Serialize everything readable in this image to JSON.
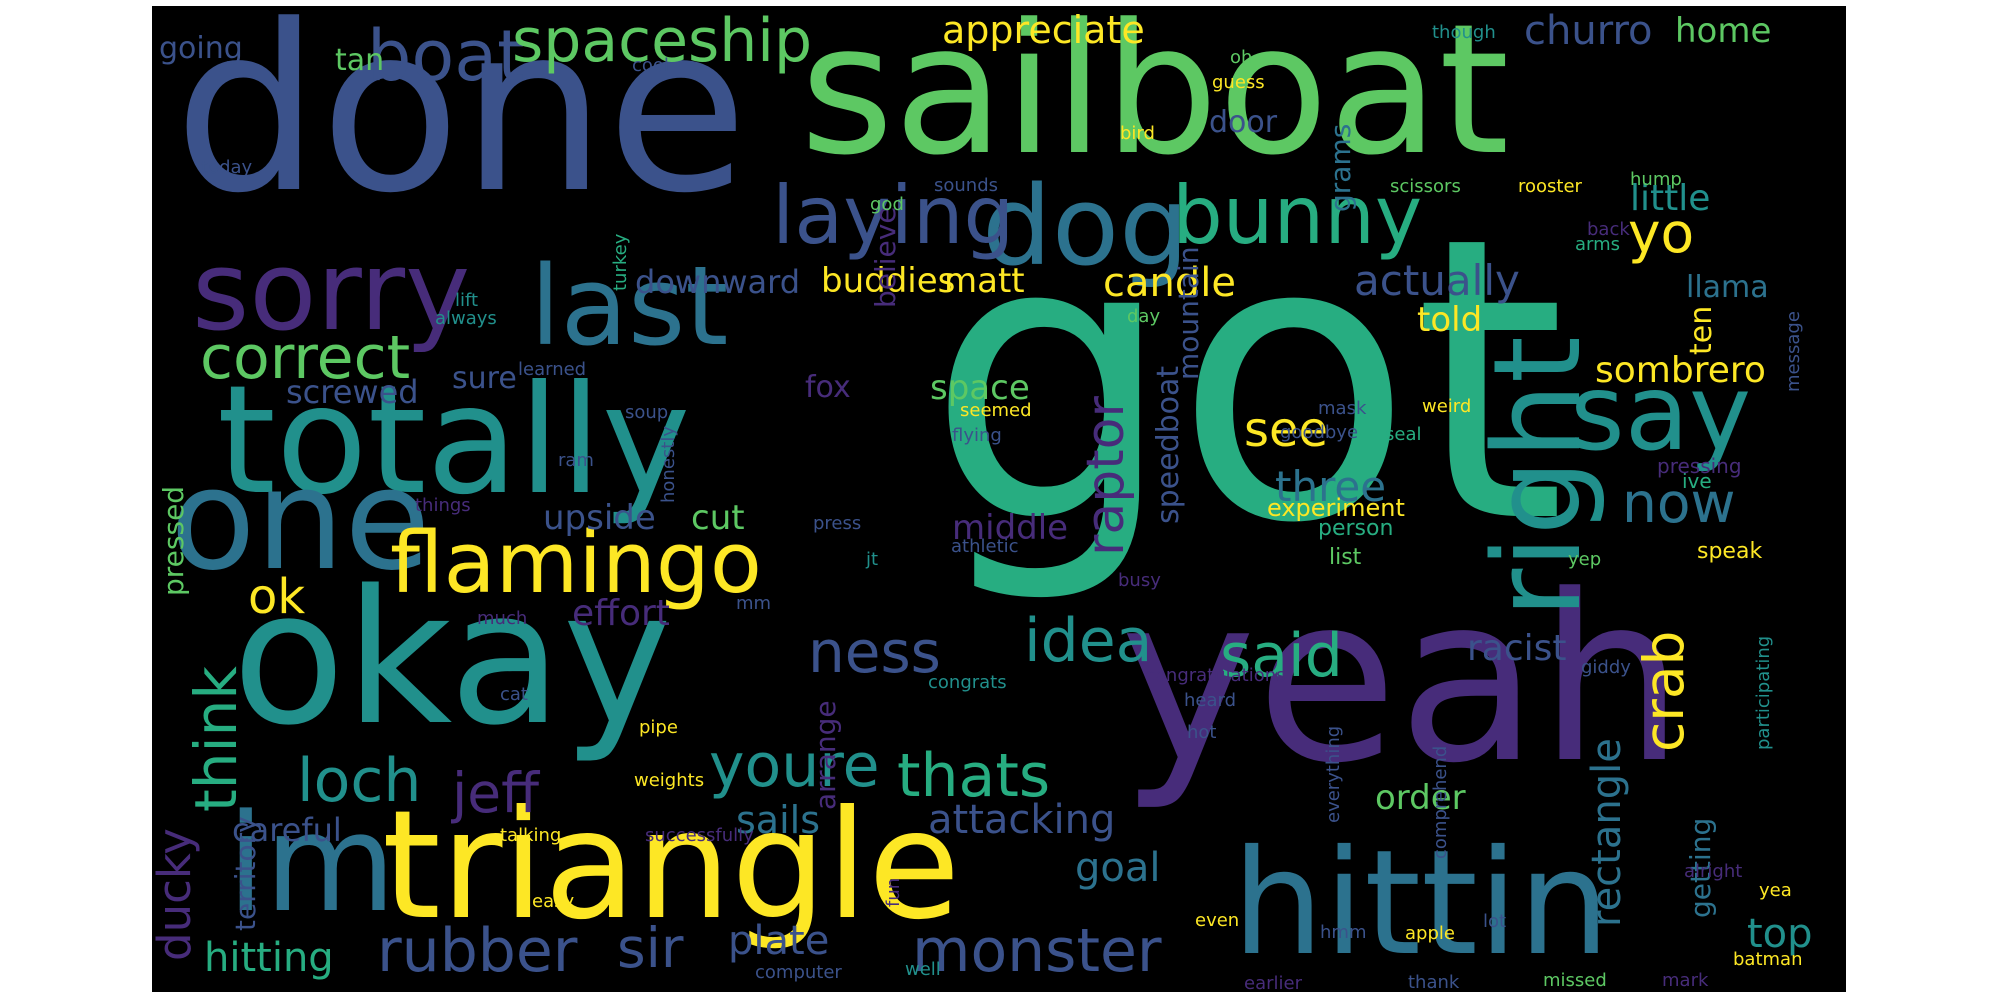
{
  "palette": {
    "purple": "#472C7A",
    "indigo": "#3B528B",
    "blue": "#2C728E",
    "teal": "#21908C",
    "green": "#27AD81",
    "lime": "#5DC863",
    "yellow": "#FDE725",
    "deep": "#440154"
  },
  "words": [
    {
      "text": "got",
      "color": "green",
      "weight": 100,
      "vertical": false
    },
    {
      "text": "done",
      "color": "indigo",
      "weight": 58,
      "vertical": false
    },
    {
      "text": "sailboat",
      "color": "lime",
      "weight": 50,
      "vertical": false
    },
    {
      "text": "yeah",
      "color": "purple",
      "weight": 56,
      "vertical": false
    },
    {
      "text": "okay",
      "color": "teal",
      "weight": 52,
      "vertical": false
    },
    {
      "text": "totally",
      "color": "teal",
      "weight": 40,
      "vertical": false
    },
    {
      "text": "triangle",
      "color": "yellow",
      "weight": 40,
      "vertical": false
    },
    {
      "text": "hittin",
      "color": "blue",
      "weight": 38,
      "vertical": false
    },
    {
      "text": "one",
      "color": "blue",
      "weight": 36,
      "vertical": false
    },
    {
      "text": "im",
      "color": "blue",
      "weight": 34,
      "vertical": false
    },
    {
      "text": "right",
      "color": "teal",
      "weight": 30,
      "vertical": true
    },
    {
      "text": "sorry",
      "color": "purple",
      "weight": 28,
      "vertical": false
    },
    {
      "text": "last",
      "color": "blue",
      "weight": 28,
      "vertical": false
    },
    {
      "text": "dog",
      "color": "blue",
      "weight": 28,
      "vertical": false
    },
    {
      "text": "say",
      "color": "teal",
      "weight": 26,
      "vertical": false
    },
    {
      "text": "flamingo",
      "color": "yellow",
      "weight": 22,
      "vertical": false
    },
    {
      "text": "laying",
      "color": "indigo",
      "weight": 20,
      "vertical": false
    },
    {
      "text": "bunny",
      "color": "green",
      "weight": 20,
      "vertical": false
    },
    {
      "text": "boat",
      "color": "indigo",
      "weight": 18,
      "vertical": false
    },
    {
      "text": "spaceship",
      "color": "lime",
      "weight": 16,
      "vertical": false
    },
    {
      "text": "correct",
      "color": "lime",
      "weight": 16,
      "vertical": false
    },
    {
      "text": "loch",
      "color": "teal",
      "weight": 16,
      "vertical": false
    },
    {
      "text": "rubber",
      "color": "indigo",
      "weight": 16,
      "vertical": false
    },
    {
      "text": "monster",
      "color": "indigo",
      "weight": 16,
      "vertical": false
    },
    {
      "text": "youre",
      "color": "teal",
      "weight": 16,
      "vertical": false
    },
    {
      "text": "thats",
      "color": "green",
      "weight": 16,
      "vertical": false
    },
    {
      "text": "idea",
      "color": "teal",
      "weight": 16,
      "vertical": false
    },
    {
      "text": "said",
      "color": "green",
      "weight": 16,
      "vertical": false
    },
    {
      "text": "think",
      "color": "green",
      "weight": 16,
      "vertical": true
    },
    {
      "text": "ness",
      "color": "indigo",
      "weight": 16,
      "vertical": false
    },
    {
      "text": "jeff",
      "color": "purple",
      "weight": 14,
      "vertical": false
    },
    {
      "text": "sir",
      "color": "indigo",
      "weight": 14,
      "vertical": false
    },
    {
      "text": "now",
      "color": "blue",
      "weight": 14,
      "vertical": false
    },
    {
      "text": "yo",
      "color": "yellow",
      "weight": 14,
      "vertical": false
    },
    {
      "text": "crab",
      "color": "yellow",
      "weight": 14,
      "vertical": true
    },
    {
      "text": "raptor",
      "color": "purple",
      "weight": 14,
      "vertical": true
    },
    {
      "text": "ok",
      "color": "yellow",
      "weight": 12,
      "vertical": false
    },
    {
      "text": "see",
      "color": "yellow",
      "weight": 12,
      "vertical": false
    },
    {
      "text": "ducky",
      "color": "purple",
      "weight": 12,
      "vertical": true
    },
    {
      "text": "rectangle",
      "color": "blue",
      "weight": 10,
      "vertical": true
    },
    {
      "text": "actually",
      "color": "indigo",
      "weight": 10,
      "vertical": false
    },
    {
      "text": "three",
      "color": "blue",
      "weight": 10,
      "vertical": false
    },
    {
      "text": "candle",
      "color": "yellow",
      "weight": 10,
      "vertical": false
    },
    {
      "text": "buddies",
      "color": "yellow",
      "weight": 10,
      "vertical": false
    },
    {
      "text": "matt",
      "color": "yellow",
      "weight": 10,
      "vertical": false
    },
    {
      "text": "hitting",
      "color": "green",
      "weight": 10,
      "vertical": false
    },
    {
      "text": "plate",
      "color": "indigo",
      "weight": 10,
      "vertical": false
    },
    {
      "text": "attacking",
      "color": "indigo",
      "weight": 10,
      "vertical": false
    },
    {
      "text": "goal",
      "color": "blue",
      "weight": 10,
      "vertical": false
    },
    {
      "text": "sails",
      "color": "blue",
      "weight": 10,
      "vertical": false
    },
    {
      "text": "churro",
      "color": "indigo",
      "weight": 10,
      "vertical": false
    },
    {
      "text": "sombrero",
      "color": "yellow",
      "weight": 10,
      "vertical": false
    },
    {
      "text": "racist",
      "color": "indigo",
      "weight": 10,
      "vertical": false
    },
    {
      "text": "top",
      "color": "teal",
      "weight": 10,
      "vertical": false
    },
    {
      "text": "appreciate",
      "color": "yellow",
      "weight": 10,
      "vertical": false
    },
    {
      "text": "effort",
      "color": "purple",
      "weight": 10,
      "vertical": false
    },
    {
      "text": "little",
      "color": "teal",
      "weight": 9,
      "vertical": false
    },
    {
      "text": "space",
      "color": "lime",
      "weight": 9,
      "vertical": false
    },
    {
      "text": "middle",
      "color": "purple",
      "weight": 9,
      "vertical": false
    },
    {
      "text": "upside",
      "color": "indigo",
      "weight": 9,
      "vertical": false
    },
    {
      "text": "cut",
      "color": "lime",
      "weight": 9,
      "vertical": false
    },
    {
      "text": "home",
      "color": "lime",
      "weight": 9,
      "vertical": false
    },
    {
      "text": "told",
      "color": "yellow",
      "weight": 9,
      "vertical": false
    },
    {
      "text": "order",
      "color": "lime",
      "weight": 9,
      "vertical": false
    },
    {
      "text": "speedboat",
      "color": "indigo",
      "weight": 9,
      "vertical": true
    },
    {
      "text": "ten",
      "color": "yellow",
      "weight": 9,
      "vertical": true
    },
    {
      "text": "downward",
      "color": "indigo",
      "weight": 8,
      "vertical": false
    },
    {
      "text": "screwed",
      "color": "indigo",
      "weight": 8,
      "vertical": false
    },
    {
      "text": "sure",
      "color": "indigo",
      "weight": 8,
      "vertical": false
    },
    {
      "text": "fox",
      "color": "purple",
      "weight": 8,
      "vertical": false
    },
    {
      "text": "careful",
      "color": "indigo",
      "weight": 8,
      "vertical": false
    },
    {
      "text": "tan",
      "color": "lime",
      "weight": 8,
      "vertical": false
    },
    {
      "text": "going",
      "color": "indigo",
      "weight": 8,
      "vertical": false
    },
    {
      "text": "door",
      "color": "indigo",
      "weight": 8,
      "vertical": false
    },
    {
      "text": "llama",
      "color": "blue",
      "weight": 8,
      "vertical": false
    },
    {
      "text": "getting",
      "color": "blue",
      "weight": 8,
      "vertical": true
    },
    {
      "text": "arrange",
      "color": "purple",
      "weight": 8,
      "vertical": true
    },
    {
      "text": "grams",
      "color": "blue",
      "weight": 8,
      "vertical": true
    },
    {
      "text": "mountain",
      "color": "indigo",
      "weight": 8,
      "vertical": true
    },
    {
      "text": "believe",
      "color": "purple",
      "weight": 8,
      "vertical": true
    },
    {
      "text": "territory",
      "color": "indigo",
      "weight": 7,
      "vertical": true
    },
    {
      "text": "pressed",
      "color": "lime",
      "weight": 7,
      "vertical": true
    },
    {
      "text": "experiment",
      "color": "yellow",
      "weight": 6,
      "vertical": false
    },
    {
      "text": "person",
      "color": "green",
      "weight": 6,
      "vertical": false
    },
    {
      "text": "list",
      "color": "lime",
      "weight": 6,
      "vertical": false
    },
    {
      "text": "speak",
      "color": "yellow",
      "weight": 6,
      "vertical": false
    },
    {
      "text": "ive",
      "color": "green",
      "weight": 5,
      "vertical": false
    },
    {
      "text": "pressing",
      "color": "purple",
      "weight": 5,
      "vertical": false
    },
    {
      "text": "participating",
      "color": "teal",
      "weight": 5,
      "vertical": true
    },
    {
      "text": "message",
      "color": "indigo",
      "weight": 5,
      "vertical": true
    },
    {
      "text": "goodbye",
      "color": "indigo",
      "weight": 5,
      "vertical": false
    },
    {
      "text": "mask",
      "color": "indigo",
      "weight": 5,
      "vertical": false
    },
    {
      "text": "weird",
      "color": "yellow",
      "weight": 5,
      "vertical": false
    },
    {
      "text": "seal",
      "color": "green",
      "weight": 5,
      "vertical": false
    },
    {
      "text": "seemed",
      "color": "yellow",
      "weight": 5,
      "vertical": false
    },
    {
      "text": "flying",
      "color": "indigo",
      "weight": 5,
      "vertical": false
    },
    {
      "text": "scissors",
      "color": "lime",
      "weight": 5,
      "vertical": false
    },
    {
      "text": "rooster",
      "color": "yellow",
      "weight": 5,
      "vertical": false
    },
    {
      "text": "hump",
      "color": "lime",
      "weight": 5,
      "vertical": false
    },
    {
      "text": "back",
      "color": "purple",
      "weight": 5,
      "vertical": false
    },
    {
      "text": "arms",
      "color": "green",
      "weight": 5,
      "vertical": false
    },
    {
      "text": "day",
      "color": "lime",
      "weight": 5,
      "vertical": false
    },
    {
      "text": "oh",
      "color": "lime",
      "weight": 5,
      "vertical": false
    },
    {
      "text": "guess",
      "color": "yellow",
      "weight": 5,
      "vertical": false
    },
    {
      "text": "bird",
      "color": "yellow",
      "weight": 5,
      "vertical": false
    },
    {
      "text": "cool",
      "color": "indigo",
      "weight": 5,
      "vertical": false
    },
    {
      "text": "today",
      "color": "indigo",
      "weight": 5,
      "vertical": false
    },
    {
      "text": "god",
      "color": "lime",
      "weight": 5,
      "vertical": false
    },
    {
      "text": "sounds",
      "color": "indigo",
      "weight": 5,
      "vertical": false
    },
    {
      "text": "turkey",
      "color": "green",
      "weight": 5,
      "vertical": true
    },
    {
      "text": "lift",
      "color": "teal",
      "weight": 5,
      "vertical": false
    },
    {
      "text": "always",
      "color": "teal",
      "weight": 5,
      "vertical": false
    },
    {
      "text": "learned",
      "color": "indigo",
      "weight": 5,
      "vertical": false
    },
    {
      "text": "soup",
      "color": "indigo",
      "weight": 5,
      "vertical": false
    },
    {
      "text": "honestly",
      "color": "indigo",
      "weight": 5,
      "vertical": true
    },
    {
      "text": "ram",
      "color": "indigo",
      "weight": 5,
      "vertical": false
    },
    {
      "text": "things",
      "color": "purple",
      "weight": 5,
      "vertical": false
    },
    {
      "text": "press",
      "color": "indigo",
      "weight": 5,
      "vertical": false
    },
    {
      "text": "jt",
      "color": "teal",
      "weight": 5,
      "vertical": false
    },
    {
      "text": "athletic",
      "color": "indigo",
      "weight": 5,
      "vertical": false
    },
    {
      "text": "busy",
      "color": "purple",
      "weight": 5,
      "vertical": false
    },
    {
      "text": "yep",
      "color": "lime",
      "weight": 5,
      "vertical": false
    },
    {
      "text": "mm",
      "color": "indigo",
      "weight": 5,
      "vertical": false
    },
    {
      "text": "much",
      "color": "purple",
      "weight": 5,
      "vertical": false
    },
    {
      "text": "cat",
      "color": "indigo",
      "weight": 5,
      "vertical": false
    },
    {
      "text": "congrats",
      "color": "teal",
      "weight": 5,
      "vertical": false
    },
    {
      "text": "congratulations",
      "color": "purple",
      "weight": 5,
      "vertical": false
    },
    {
      "text": "giddy",
      "color": "indigo",
      "weight": 5,
      "vertical": false
    },
    {
      "text": "heard",
      "color": "indigo",
      "weight": 5,
      "vertical": false
    },
    {
      "text": "hot",
      "color": "indigo",
      "weight": 5,
      "vertical": false
    },
    {
      "text": "everything",
      "color": "indigo",
      "weight": 5,
      "vertical": true
    },
    {
      "text": "comprehend",
      "color": "indigo",
      "weight": 5,
      "vertical": true
    },
    {
      "text": "pipe",
      "color": "yellow",
      "weight": 5,
      "vertical": false
    },
    {
      "text": "weights",
      "color": "yellow",
      "weight": 5,
      "vertical": false
    },
    {
      "text": "talking",
      "color": "yellow",
      "weight": 5,
      "vertical": false
    },
    {
      "text": "successfully",
      "color": "purple",
      "weight": 5,
      "vertical": false
    },
    {
      "text": "easy",
      "color": "yellow",
      "weight": 5,
      "vertical": false
    },
    {
      "text": "fun",
      "color": "purple",
      "weight": 5,
      "vertical": true
    },
    {
      "text": "even",
      "color": "yellow",
      "weight": 5,
      "vertical": false
    },
    {
      "text": "hmm",
      "color": "indigo",
      "weight": 5,
      "vertical": false
    },
    {
      "text": "apple",
      "color": "yellow",
      "weight": 5,
      "vertical": false
    },
    {
      "text": "lot",
      "color": "indigo",
      "weight": 5,
      "vertical": false
    },
    {
      "text": "alright",
      "color": "purple",
      "weight": 5,
      "vertical": false
    },
    {
      "text": "yea",
      "color": "yellow",
      "weight": 5,
      "vertical": false
    },
    {
      "text": "batman",
      "color": "yellow",
      "weight": 5,
      "vertical": false
    },
    {
      "text": "computer",
      "color": "indigo",
      "weight": 5,
      "vertical": false
    },
    {
      "text": "well",
      "color": "teal",
      "weight": 5,
      "vertical": false
    },
    {
      "text": "earlier",
      "color": "purple",
      "weight": 5,
      "vertical": false
    },
    {
      "text": "thank",
      "color": "indigo",
      "weight": 5,
      "vertical": false
    },
    {
      "text": "missed",
      "color": "lime",
      "weight": 5,
      "vertical": false
    },
    {
      "text": "mark",
      "color": "purple",
      "weight": 5,
      "vertical": false
    },
    {
      "text": "though",
      "color": "teal",
      "weight": 5,
      "vertical": false
    }
  ]
}
